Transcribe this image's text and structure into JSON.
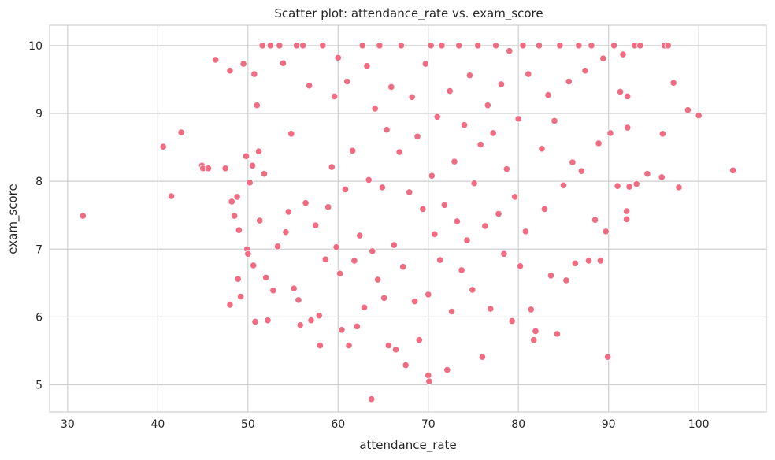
{
  "chart_data": {
    "type": "scatter",
    "title": "Scatter plot: attendance_rate vs. exam_score",
    "xlabel": "attendance_rate",
    "ylabel": "exam_score",
    "xlim": [
      28,
      107.5
    ],
    "ylim": [
      4.6,
      10.3
    ],
    "x_ticks": [
      30,
      40,
      50,
      60,
      70,
      80,
      90,
      100
    ],
    "y_ticks": [
      5,
      6,
      7,
      8,
      9,
      10
    ],
    "grid": true,
    "point_color": "#f06c82",
    "point_edge_color": "#ffffff",
    "series": [
      {
        "points": [
          [
            31.7,
            7.49
          ],
          [
            40.6,
            8.51
          ],
          [
            41.5,
            7.78
          ],
          [
            42.6,
            8.72
          ],
          [
            44.9,
            8.23
          ],
          [
            45.0,
            8.19
          ],
          [
            45.6,
            8.19
          ],
          [
            46.4,
            9.79
          ],
          [
            47.5,
            8.19
          ],
          [
            48.0,
            9.63
          ],
          [
            48.0,
            6.18
          ],
          [
            48.2,
            7.7
          ],
          [
            48.5,
            7.49
          ],
          [
            48.8,
            7.77
          ],
          [
            48.9,
            6.56
          ],
          [
            49.0,
            7.28
          ],
          [
            49.2,
            6.3
          ],
          [
            49.5,
            9.73
          ],
          [
            49.8,
            8.37
          ],
          [
            49.9,
            7.0
          ],
          [
            50.0,
            6.93
          ],
          [
            50.2,
            7.98
          ],
          [
            50.5,
            8.23
          ],
          [
            50.6,
            6.76
          ],
          [
            50.7,
            9.58
          ],
          [
            50.8,
            5.93
          ],
          [
            51.0,
            9.12
          ],
          [
            51.2,
            8.44
          ],
          [
            51.3,
            7.42
          ],
          [
            51.6,
            10.0
          ],
          [
            51.8,
            8.11
          ],
          [
            52.0,
            6.58
          ],
          [
            52.2,
            5.95
          ],
          [
            52.5,
            10.0
          ],
          [
            52.8,
            6.39
          ],
          [
            53.3,
            7.04
          ],
          [
            53.5,
            10.0
          ],
          [
            53.9,
            9.74
          ],
          [
            54.2,
            7.25
          ],
          [
            54.5,
            7.55
          ],
          [
            54.8,
            8.7
          ],
          [
            55.1,
            6.42
          ],
          [
            55.4,
            10.0
          ],
          [
            55.6,
            6.25
          ],
          [
            55.8,
            5.88
          ],
          [
            56.1,
            10.0
          ],
          [
            56.4,
            7.68
          ],
          [
            56.8,
            9.41
          ],
          [
            57.0,
            5.95
          ],
          [
            57.5,
            7.35
          ],
          [
            57.9,
            6.02
          ],
          [
            58.0,
            5.58
          ],
          [
            58.3,
            10.0
          ],
          [
            58.6,
            6.85
          ],
          [
            58.9,
            7.62
          ],
          [
            59.3,
            8.21
          ],
          [
            59.6,
            9.25
          ],
          [
            59.8,
            7.03
          ],
          [
            60.0,
            9.82
          ],
          [
            60.2,
            6.64
          ],
          [
            60.4,
            5.81
          ],
          [
            60.8,
            7.88
          ],
          [
            61.0,
            9.47
          ],
          [
            61.2,
            5.58
          ],
          [
            61.6,
            8.45
          ],
          [
            61.8,
            6.83
          ],
          [
            62.1,
            5.86
          ],
          [
            62.4,
            7.2
          ],
          [
            62.7,
            10.0
          ],
          [
            62.9,
            6.14
          ],
          [
            63.2,
            9.7
          ],
          [
            63.4,
            8.02
          ],
          [
            63.7,
            4.79
          ],
          [
            63.8,
            6.97
          ],
          [
            64.1,
            9.07
          ],
          [
            64.4,
            6.55
          ],
          [
            64.6,
            10.0
          ],
          [
            64.9,
            7.91
          ],
          [
            65.1,
            6.28
          ],
          [
            65.4,
            8.76
          ],
          [
            65.6,
            5.58
          ],
          [
            65.9,
            9.39
          ],
          [
            66.2,
            7.06
          ],
          [
            66.4,
            5.52
          ],
          [
            66.8,
            8.43
          ],
          [
            67.0,
            10.0
          ],
          [
            67.2,
            6.74
          ],
          [
            67.5,
            5.29
          ],
          [
            67.9,
            7.84
          ],
          [
            68.2,
            9.24
          ],
          [
            68.5,
            6.23
          ],
          [
            68.8,
            8.66
          ],
          [
            69.0,
            5.66
          ],
          [
            69.4,
            7.59
          ],
          [
            69.7,
            9.73
          ],
          [
            70.0,
            5.14
          ],
          [
            70.0,
            6.33
          ],
          [
            70.1,
            5.05
          ],
          [
            70.3,
            10.0
          ],
          [
            70.4,
            8.08
          ],
          [
            70.7,
            7.22
          ],
          [
            71.0,
            8.95
          ],
          [
            71.3,
            6.84
          ],
          [
            71.5,
            10.0
          ],
          [
            71.8,
            7.65
          ],
          [
            72.1,
            5.22
          ],
          [
            72.4,
            9.33
          ],
          [
            72.6,
            6.08
          ],
          [
            72.9,
            8.29
          ],
          [
            73.2,
            7.41
          ],
          [
            73.4,
            10.0
          ],
          [
            73.7,
            6.69
          ],
          [
            74.0,
            8.83
          ],
          [
            74.3,
            7.13
          ],
          [
            74.6,
            9.56
          ],
          [
            74.9,
            6.4
          ],
          [
            75.1,
            7.97
          ],
          [
            75.5,
            10.0
          ],
          [
            75.8,
            8.54
          ],
          [
            76.0,
            5.41
          ],
          [
            76.3,
            7.34
          ],
          [
            76.6,
            9.12
          ],
          [
            76.9,
            6.12
          ],
          [
            77.2,
            8.71
          ],
          [
            77.5,
            10.0
          ],
          [
            77.8,
            7.52
          ],
          [
            78.1,
            9.43
          ],
          [
            78.4,
            6.93
          ],
          [
            78.7,
            8.18
          ],
          [
            79.0,
            9.92
          ],
          [
            79.3,
            5.94
          ],
          [
            79.6,
            7.77
          ],
          [
            80.0,
            8.92
          ],
          [
            80.2,
            6.75
          ],
          [
            80.5,
            10.0
          ],
          [
            80.8,
            7.26
          ],
          [
            81.1,
            9.58
          ],
          [
            81.4,
            6.11
          ],
          [
            81.7,
            5.66
          ],
          [
            81.9,
            5.79
          ],
          [
            82.3,
            10.0
          ],
          [
            82.6,
            8.48
          ],
          [
            82.9,
            7.59
          ],
          [
            83.3,
            9.27
          ],
          [
            83.6,
            6.61
          ],
          [
            84.0,
            8.89
          ],
          [
            84.3,
            5.75
          ],
          [
            84.6,
            10.0
          ],
          [
            85.0,
            7.94
          ],
          [
            85.3,
            6.54
          ],
          [
            85.6,
            9.47
          ],
          [
            86.0,
            8.28
          ],
          [
            86.3,
            6.79
          ],
          [
            86.7,
            10.0
          ],
          [
            87.0,
            8.15
          ],
          [
            87.4,
            9.63
          ],
          [
            87.8,
            6.83
          ],
          [
            88.1,
            10.0
          ],
          [
            88.5,
            7.43
          ],
          [
            88.9,
            8.56
          ],
          [
            89.1,
            6.83
          ],
          [
            89.4,
            9.81
          ],
          [
            89.7,
            7.26
          ],
          [
            89.9,
            5.41
          ],
          [
            90.2,
            8.71
          ],
          [
            90.6,
            10.0
          ],
          [
            91.0,
            7.93
          ],
          [
            91.3,
            9.32
          ],
          [
            91.6,
            9.87
          ],
          [
            92.0,
            7.56
          ],
          [
            92.0,
            7.44
          ],
          [
            92.1,
            9.25
          ],
          [
            92.1,
            8.79
          ],
          [
            92.3,
            7.92
          ],
          [
            92.9,
            10.0
          ],
          [
            93.1,
            7.96
          ],
          [
            93.5,
            10.0
          ],
          [
            94.3,
            8.11
          ],
          [
            95.9,
            8.06
          ],
          [
            96.0,
            8.7
          ],
          [
            96.2,
            10.0
          ],
          [
            96.6,
            10.0
          ],
          [
            97.2,
            9.45
          ],
          [
            97.8,
            7.91
          ],
          [
            98.8,
            9.05
          ],
          [
            100.0,
            8.97
          ],
          [
            103.8,
            8.16
          ]
        ]
      }
    ]
  }
}
